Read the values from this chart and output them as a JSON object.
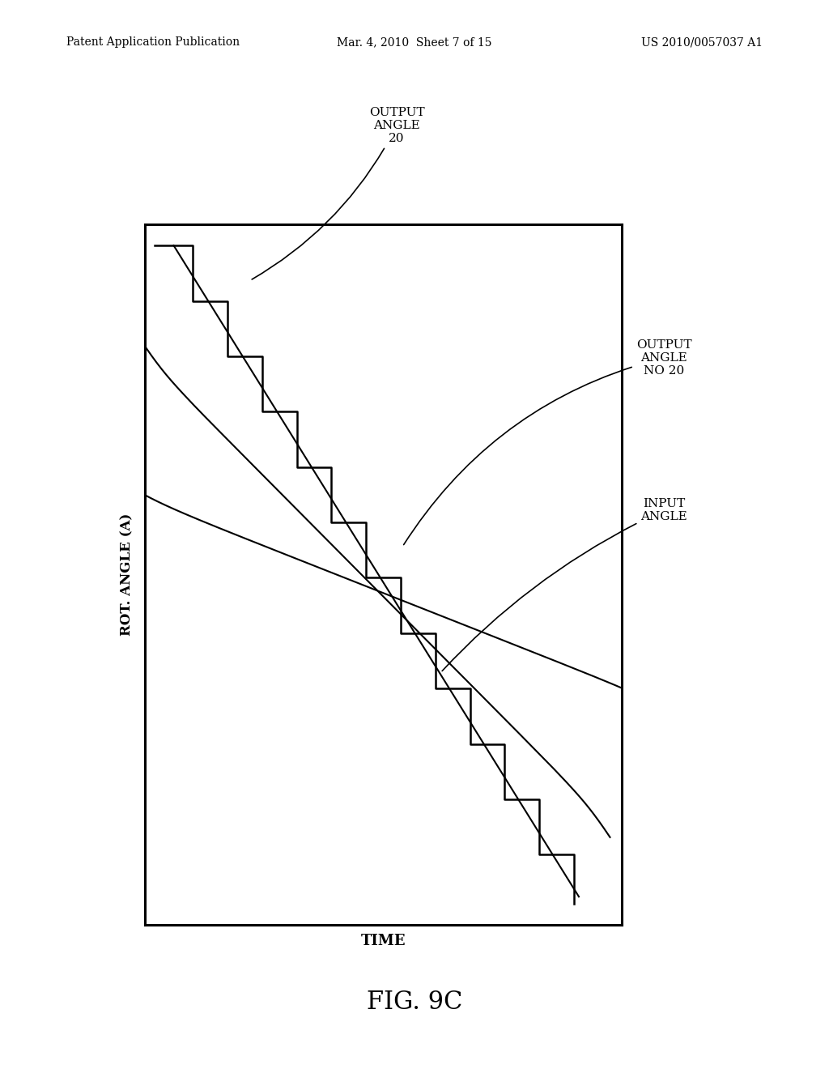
{
  "header_left": "Patent Application Publication",
  "header_mid": "Mar. 4, 2010  Sheet 7 of 15",
  "header_right": "US 2010/0057037 A1",
  "fig_label": "FIG. 9C",
  "ylabel": "ROT. ANGLE (A)",
  "xlabel": "TIME",
  "annotation_output20": "OUTPUT\nANGLE\n20",
  "annotation_output_no20": "OUTPUT\nANGLE\nNO 20",
  "annotation_input": "INPUT\nANGLE",
  "background_color": "#ffffff",
  "line_color": "#000000",
  "header_fontsize": 10,
  "fig_label_fontsize": 22,
  "ylabel_fontsize": 12,
  "xlabel_fontsize": 13,
  "annotation_fontsize": 11
}
